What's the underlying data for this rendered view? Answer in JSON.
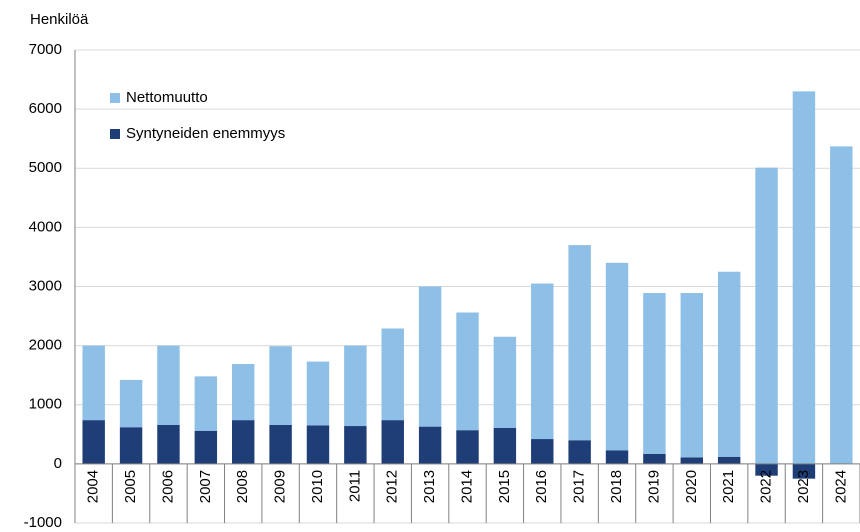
{
  "chart_data": {
    "type": "stacked_bar",
    "y_axis_label": "Henkilöä",
    "categories": [
      "2004",
      "2005",
      "2006",
      "2007",
      "2008",
      "2009",
      "2010",
      "2011",
      "2012",
      "2013",
      "2014",
      "2015",
      "2016",
      "2017",
      "2018",
      "2019",
      "2020",
      "2021",
      "2022",
      "2023",
      "2024"
    ],
    "series": [
      {
        "name": "Syntyneiden enemmyys",
        "color": "#1f3e78",
        "values": [
          740,
          620,
          660,
          560,
          740,
          660,
          650,
          640,
          740,
          630,
          570,
          610,
          420,
          400,
          230,
          170,
          110,
          120,
          -200,
          -250,
          0
        ]
      },
      {
        "name": "Nettomuutto",
        "color": "#8dbfe7",
        "values": [
          1260,
          800,
          1340,
          920,
          950,
          1330,
          1080,
          1360,
          1550,
          2370,
          1990,
          1540,
          2630,
          3300,
          3170,
          2720,
          2780,
          3130,
          5010,
          6300,
          5370
        ]
      }
    ],
    "ylim": [
      -1000,
      7000
    ],
    "yticks": [
      -1000,
      0,
      1000,
      2000,
      3000,
      4000,
      5000,
      6000,
      7000
    ],
    "grid": true,
    "legend": "upper-left"
  }
}
